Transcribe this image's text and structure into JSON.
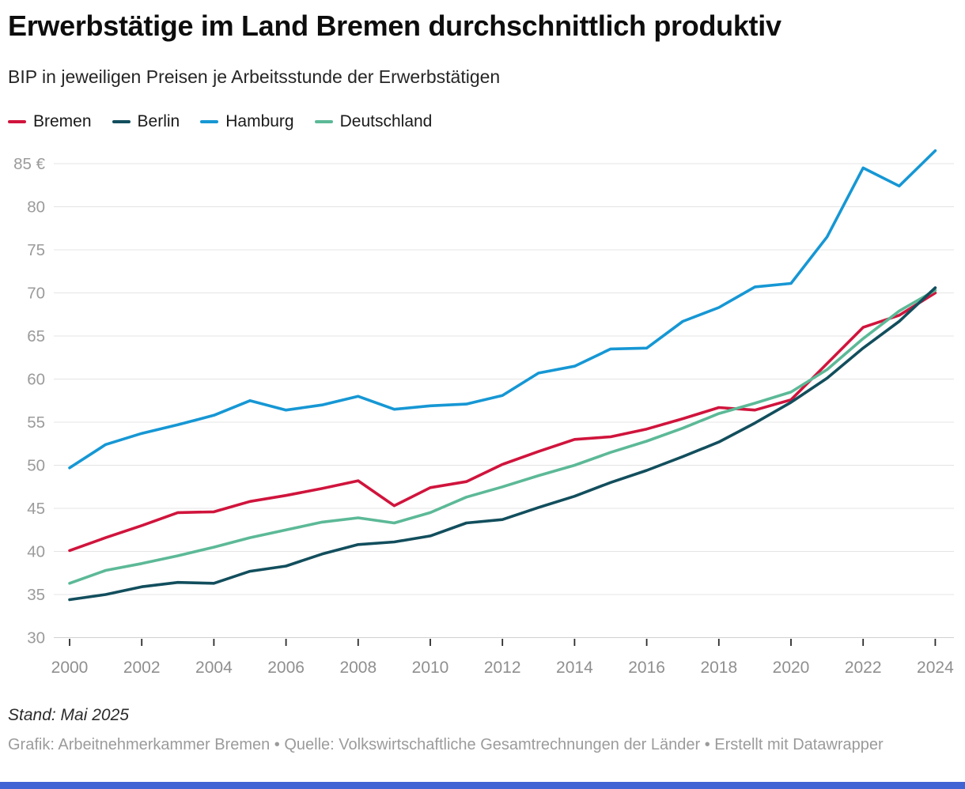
{
  "header": {
    "title": "Erwerbstätige im Land Bremen durchschnittlich produktiv",
    "subtitle": "BIP in jeweiligen Preisen je Arbeitsstunde der Erwerbstätigen"
  },
  "legend": {
    "items": [
      {
        "label": "Bremen",
        "color": "#d0143c"
      },
      {
        "label": "Berlin",
        "color": "#124e5d"
      },
      {
        "label": "Hamburg",
        "color": "#1697d4"
      },
      {
        "label": "Deutschland",
        "color": "#5cb997"
      }
    ]
  },
  "chart_data": {
    "type": "line",
    "title": "Erwerbstätige im Land Bremen durchschnittlich produktiv",
    "subtitle": "BIP in jeweiligen Preisen je Arbeitsstunde der Erwerbstätigen",
    "unit": "€ je Arbeitsstunde",
    "x": [
      2000,
      2001,
      2002,
      2003,
      2004,
      2005,
      2006,
      2007,
      2008,
      2009,
      2010,
      2011,
      2012,
      2013,
      2014,
      2015,
      2016,
      2017,
      2018,
      2019,
      2020,
      2021,
      2022,
      2023,
      2024
    ],
    "series": [
      {
        "name": "Hamburg",
        "color": "#1697d4",
        "values": [
          49.7,
          52.4,
          53.7,
          54.7,
          55.8,
          57.5,
          56.4,
          57.0,
          58.0,
          56.5,
          56.9,
          57.1,
          58.1,
          60.7,
          61.5,
          63.5,
          63.6,
          66.7,
          68.3,
          70.7,
          71.1,
          76.5,
          84.5,
          82.4,
          86.5
        ]
      },
      {
        "name": "Bremen",
        "color": "#d0143c",
        "values": [
          40.1,
          41.6,
          43.0,
          44.5,
          44.6,
          45.8,
          46.5,
          47.3,
          48.2,
          45.3,
          47.4,
          48.1,
          50.1,
          51.6,
          53.0,
          53.3,
          54.2,
          55.4,
          56.7,
          56.4,
          57.6,
          61.8,
          66.0,
          67.4,
          70.0
        ]
      },
      {
        "name": "Deutschland",
        "color": "#5cb997",
        "values": [
          36.3,
          37.8,
          38.6,
          39.5,
          40.5,
          41.6,
          42.5,
          43.4,
          43.9,
          43.3,
          44.5,
          46.3,
          47.5,
          48.8,
          50.0,
          51.5,
          52.8,
          54.3,
          56.0,
          57.2,
          58.5,
          61.1,
          64.7,
          67.9,
          70.3
        ]
      },
      {
        "name": "Berlin",
        "color": "#124e5d",
        "values": [
          34.4,
          35.0,
          35.9,
          36.4,
          36.3,
          37.7,
          38.3,
          39.7,
          40.8,
          41.1,
          41.8,
          43.3,
          43.7,
          45.1,
          46.4,
          48.0,
          49.4,
          51.0,
          52.7,
          54.9,
          57.3,
          60.1,
          63.6,
          66.7,
          70.6
        ]
      }
    ],
    "legend_order": [
      "Bremen",
      "Berlin",
      "Hamburg",
      "Deutschland"
    ],
    "legend_position": "top",
    "grid": true,
    "ylim": [
      30,
      87.5
    ],
    "yticks": [
      85,
      80,
      75,
      70,
      65,
      60,
      55,
      50,
      45,
      40,
      35,
      30
    ],
    "ytick_labels": [
      "85 €",
      "80",
      "75",
      "70",
      "65",
      "60",
      "55",
      "50",
      "45",
      "40",
      "35",
      "30"
    ],
    "xticks": [
      2000,
      2002,
      2004,
      2006,
      2008,
      2010,
      2012,
      2014,
      2016,
      2018,
      2020,
      2022,
      2024
    ],
    "xtick_labels": [
      "2000",
      "2002",
      "2004",
      "2006",
      "2008",
      "2010",
      "2012",
      "2014",
      "2016",
      "2018",
      "2020",
      "2022",
      "2024"
    ]
  },
  "footer": {
    "stand": "Stand: Mai 2025",
    "credit": "Grafik: Arbeitnehmerkammer Bremen • Quelle: Volkswirtschaftliche Gesamtrechnungen der Länder • Erstellt mit Datawrapper"
  },
  "colors": {
    "bremen": "#d0143c",
    "berlin": "#124e5d",
    "hamburg": "#1697d4",
    "deutschland": "#5cb997",
    "gridline": "#e4e4e4",
    "baseline": "#d0d0d0",
    "tick_mark": "#2b2b2b",
    "axis_label": "#8f8f8f",
    "y_label": "#9b9b9b",
    "credit_text": "#9b9b9b",
    "brand_bar": "#4064d4"
  }
}
